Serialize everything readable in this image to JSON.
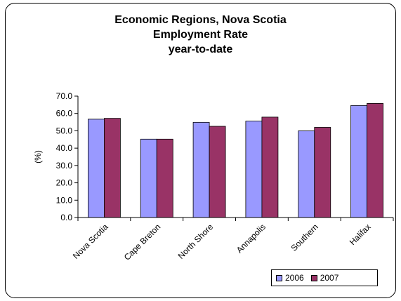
{
  "chart_data": {
    "type": "bar",
    "title_lines": [
      "Economic Regions, Nova Scotia",
      "Employment Rate",
      "year-to-date"
    ],
    "ylabel": "(%)",
    "xlabel": "",
    "ylim": [
      0,
      70
    ],
    "yticks": [
      "0.0",
      "10.0",
      "20.0",
      "30.0",
      "40.0",
      "50.0",
      "60.0",
      "70.0"
    ],
    "categories": [
      "Nova Scotia",
      "Cape Breton",
      "North Shore",
      "Annapolis",
      "Southern",
      "Halifax"
    ],
    "series": [
      {
        "name": "2006",
        "color": "#9999ff",
        "values": [
          56.7,
          45.2,
          54.9,
          55.6,
          50.0,
          64.6
        ]
      },
      {
        "name": "2007",
        "color": "#993366",
        "values": [
          57.2,
          45.2,
          52.6,
          57.9,
          52.0,
          65.8
        ]
      }
    ],
    "legend_position": "bottom-right",
    "grid": false
  }
}
